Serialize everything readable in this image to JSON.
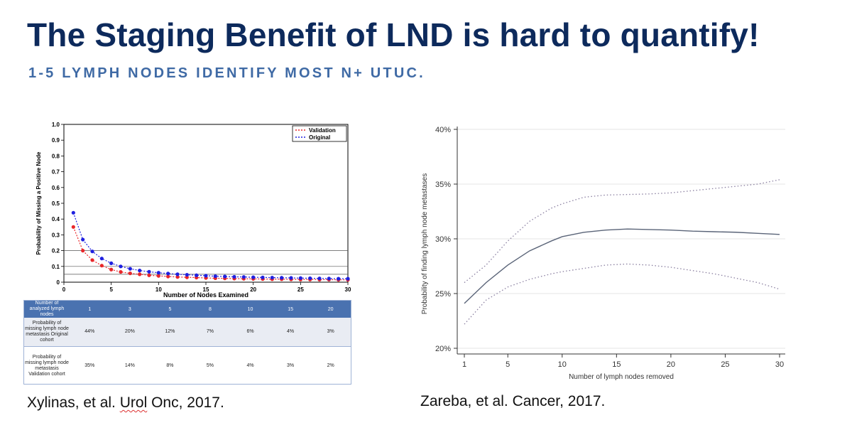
{
  "slide": {
    "title": "The Staging Benefit of LND is hard to quantify!",
    "subtitle": "1-5 LYMPH NODES IDENTIFY MOST N+ UTUC."
  },
  "left_citation": {
    "prefix": "Xylinas, et al. ",
    "underlined": "Urol",
    "suffix": " Onc, 2017."
  },
  "right_citation": "Zareba, et al. Cancer, 2017.",
  "left_table": {
    "header_label": "Number of analyzed lymph nodes",
    "headers": [
      "1",
      "3",
      "5",
      "8",
      "10",
      "15",
      "20"
    ],
    "rows": [
      {
        "label": "Probability of missing lymph node metastasis Original cohort",
        "values": [
          "44%",
          "20%",
          "12%",
          "7%",
          "6%",
          "4%",
          "3%"
        ]
      },
      {
        "label": "Probability of missing lymph node metastasis Validation cohort",
        "values": [
          "35%",
          "14%",
          "8%",
          "5%",
          "4%",
          "3%",
          "2%"
        ]
      }
    ]
  },
  "chart_data": [
    {
      "type": "line",
      "title": "",
      "xlabel": "Number of Nodes Examined",
      "ylabel": "Probability of Missing a Positive Node",
      "xlim": [
        0,
        30
      ],
      "ylim": [
        0,
        1.0
      ],
      "xticks": [
        "0",
        "5",
        "10",
        "15",
        "20",
        "25",
        "30"
      ],
      "yticks": [
        "0",
        "0.1",
        "0.2",
        "0.3",
        "0.4",
        "0.5",
        "0.6",
        "0.7",
        "0.8",
        "0.9",
        "1.0"
      ],
      "reference_lines": [
        0.05,
        0.1,
        0.2
      ],
      "legend_position": "top-right",
      "x": [
        1,
        2,
        3,
        4,
        5,
        6,
        7,
        8,
        9,
        10,
        11,
        12,
        13,
        14,
        15,
        16,
        17,
        18,
        19,
        20,
        21,
        22,
        23,
        24,
        25,
        26,
        27,
        28,
        29,
        30
      ],
      "series": [
        {
          "name": "Validation",
          "color": "#e8262a",
          "values": [
            0.35,
            0.2,
            0.14,
            0.105,
            0.08,
            0.065,
            0.056,
            0.05,
            0.044,
            0.04,
            0.036,
            0.033,
            0.031,
            0.029,
            0.027,
            0.025,
            0.024,
            0.023,
            0.022,
            0.021,
            0.02,
            0.019,
            0.019,
            0.018,
            0.017,
            0.017,
            0.016,
            0.016,
            0.015,
            0.015
          ]
        },
        {
          "name": "Original",
          "color": "#1f20e0",
          "values": [
            0.44,
            0.27,
            0.195,
            0.15,
            0.12,
            0.1,
            0.085,
            0.074,
            0.066,
            0.06,
            0.055,
            0.05,
            0.047,
            0.044,
            0.041,
            0.038,
            0.036,
            0.034,
            0.033,
            0.031,
            0.03,
            0.029,
            0.028,
            0.027,
            0.026,
            0.025,
            0.024,
            0.023,
            0.022,
            0.022
          ]
        }
      ]
    },
    {
      "type": "line",
      "title": "",
      "xlabel": "Number of lymph nodes removed",
      "ylabel": "Probability of finding lymph node metastases",
      "xlim": [
        1,
        30
      ],
      "ylim": [
        20,
        40
      ],
      "xticks": [
        "1",
        "5",
        "10",
        "15",
        "20",
        "25",
        "30"
      ],
      "xtick_values": [
        1,
        5,
        10,
        15,
        20,
        25,
        30
      ],
      "yticks": [
        "20%",
        "25%",
        "30%",
        "35%",
        "40%"
      ],
      "ytick_values": [
        20,
        25,
        30,
        35,
        40
      ],
      "grid": true,
      "x": [
        1,
        3,
        5,
        7,
        9,
        10,
        12,
        14,
        16,
        18,
        20,
        22,
        24,
        26,
        28,
        30
      ],
      "series": [
        {
          "role": "estimate",
          "style": "solid",
          "color": "#5a6478",
          "values": [
            24.1,
            26.0,
            27.6,
            28.9,
            29.8,
            30.2,
            30.6,
            30.8,
            30.9,
            30.85,
            30.8,
            30.7,
            30.65,
            30.6,
            30.5,
            30.4
          ]
        },
        {
          "role": "upper",
          "style": "dotted",
          "color": "#8a7fa0",
          "values": [
            26.0,
            27.6,
            29.8,
            31.6,
            32.8,
            33.2,
            33.8,
            34.0,
            34.05,
            34.1,
            34.2,
            34.4,
            34.6,
            34.8,
            35.0,
            35.4
          ]
        },
        {
          "role": "lower",
          "style": "dotted",
          "color": "#8a7fa0",
          "values": [
            22.2,
            24.4,
            25.6,
            26.3,
            26.8,
            27.0,
            27.3,
            27.6,
            27.7,
            27.6,
            27.4,
            27.1,
            26.8,
            26.4,
            26.0,
            25.4
          ]
        }
      ]
    }
  ]
}
